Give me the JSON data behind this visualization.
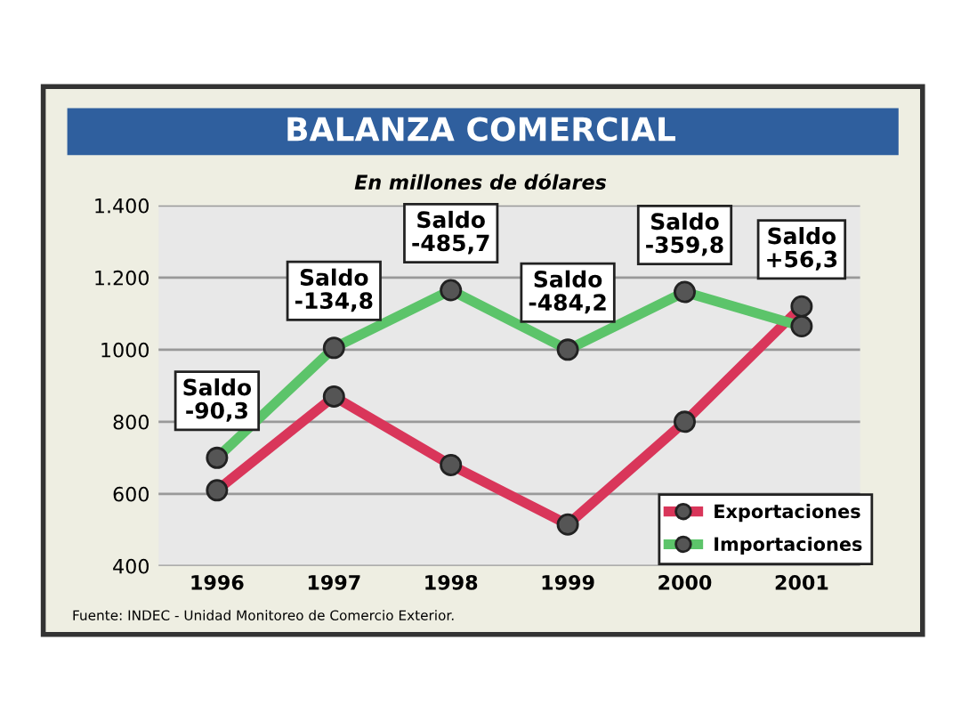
{
  "chart_data": {
    "type": "line",
    "title": "BALANZA COMERCIAL",
    "subtitle": "En millones de dólares",
    "categories": [
      "1996",
      "1997",
      "1998",
      "1999",
      "2000",
      "2001"
    ],
    "series": [
      {
        "name": "Exportaciones",
        "color": "#d9365a",
        "values": [
          610,
          870,
          680,
          515,
          800,
          1120
        ]
      },
      {
        "name": "Importaciones",
        "color": "#5cc46a",
        "values": [
          700,
          1005,
          1165,
          1000,
          1160,
          1065
        ]
      }
    ],
    "ylim": [
      400,
      1400
    ],
    "yticks": [
      400,
      600,
      800,
      1000,
      {
        "value": 1200,
        "label": "1.200"
      },
      {
        "value": 1400,
        "label": "1.400"
      }
    ],
    "grid": "y",
    "legend": "bottom right",
    "marker": "circle",
    "line_style": "solid",
    "annotations": [
      {
        "text": "Saldo\n-90,3",
        "x": "1996",
        "y": 700
      },
      {
        "text": "Saldo\n-134,8",
        "x": "1997",
        "y": 1005
      },
      {
        "text": "Saldo\n-485,7",
        "x": "1998",
        "y": 1165
      },
      {
        "text": "Saldo\n-484,2",
        "x": "1999",
        "y": 1000
      },
      {
        "text": "Saldo\n-359,8",
        "x": "2000",
        "y": 1160
      },
      {
        "text": "Saldo\n+56,3",
        "x": "2001",
        "y": 1120
      },
      "Fuente: INDEC - Unidad Monitoreo de Comercio Exterior."
    ]
  }
}
